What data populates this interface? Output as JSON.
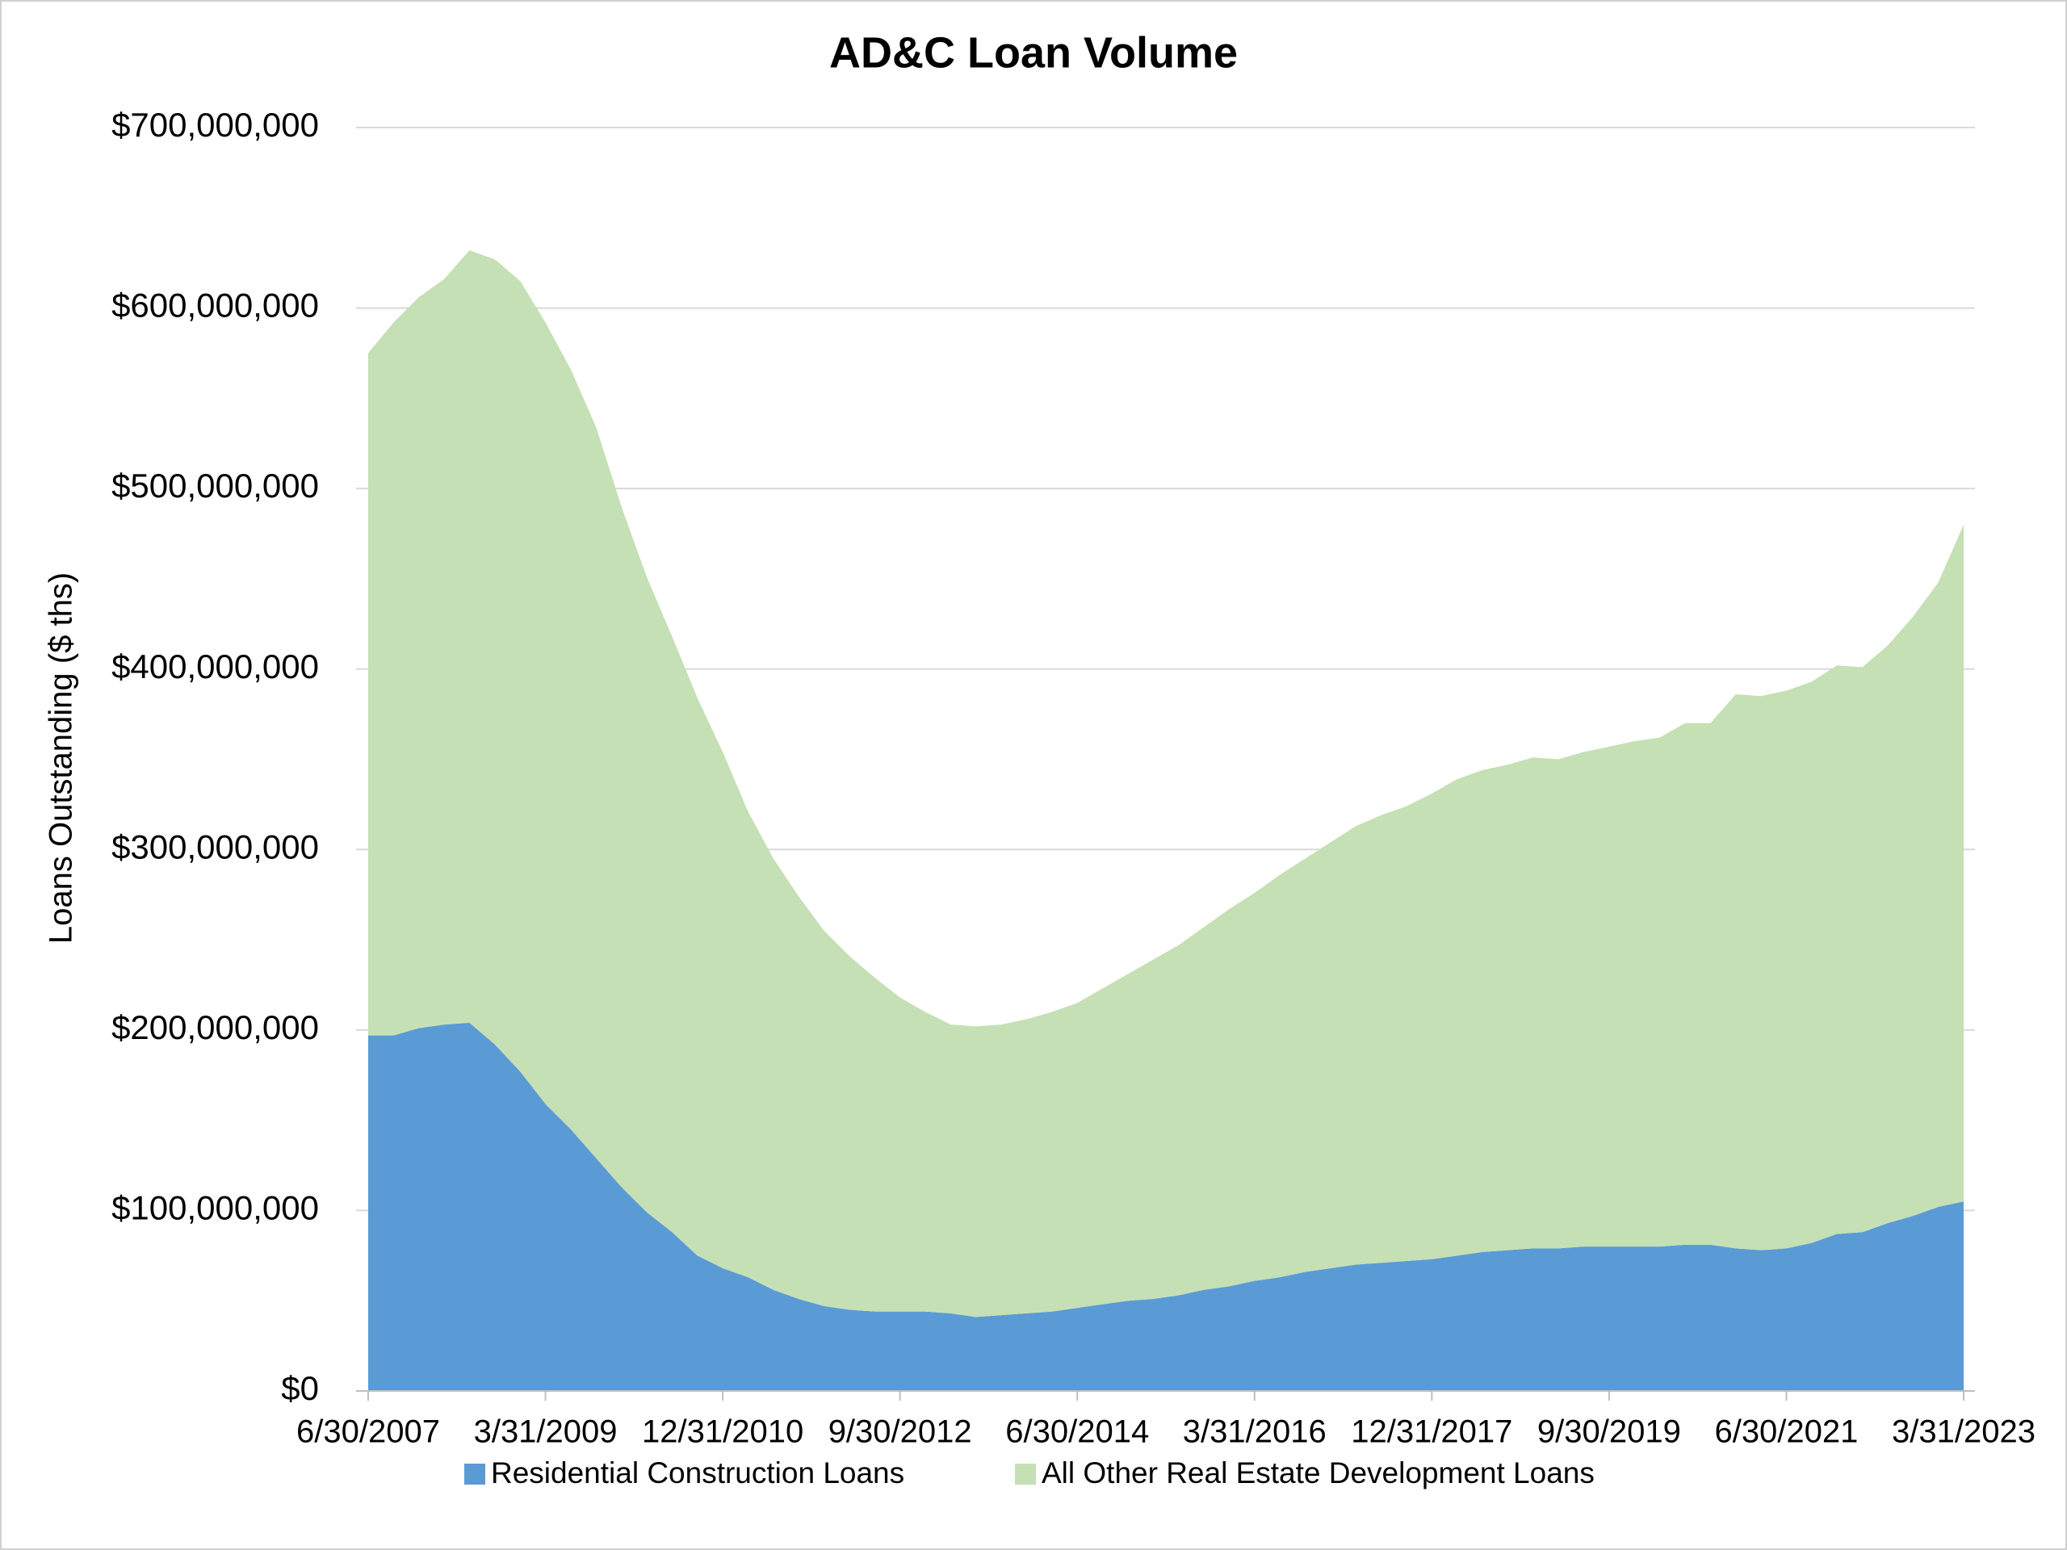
{
  "chart_data": {
    "type": "stacked_area",
    "title": "AD&C Loan Volume",
    "y_label": "Loans Outstanding ($ ths)",
    "categories": [
      "6/30/2007",
      null,
      null,
      null,
      null,
      null,
      null,
      "3/31/2009",
      null,
      null,
      null,
      null,
      null,
      null,
      "12/31/2010",
      null,
      null,
      null,
      null,
      null,
      null,
      "9/30/2012",
      null,
      null,
      null,
      null,
      null,
      null,
      "6/30/2014",
      null,
      null,
      null,
      null,
      null,
      null,
      "3/31/2016",
      null,
      null,
      null,
      null,
      null,
      null,
      "12/31/2017",
      null,
      null,
      null,
      null,
      null,
      null,
      "9/30/2019",
      null,
      null,
      null,
      null,
      null,
      null,
      "6/30/2021",
      null,
      null,
      null,
      null,
      null,
      null,
      "3/31/2023"
    ],
    "series": [
      {
        "name": "Residential Construction Loans",
        "color": "#5b9bd5",
        "values": [
          197000000,
          197000000,
          201000000,
          203000000,
          204000000,
          192000000,
          177000000,
          159000000,
          145000000,
          129000000,
          113000000,
          99000000,
          88000000,
          75000000,
          68000000,
          63000000,
          56000000,
          51000000,
          47000000,
          45000000,
          44000000,
          44000000,
          44000000,
          43000000,
          41000000,
          42000000,
          43000000,
          44000000,
          46000000,
          48000000,
          50000000,
          51000000,
          53000000,
          56000000,
          58000000,
          61000000,
          63000000,
          66000000,
          68000000,
          70000000,
          71000000,
          72000000,
          73000000,
          75000000,
          77000000,
          78000000,
          79000000,
          79000000,
          80000000,
          80000000,
          80000000,
          80000000,
          81000000,
          81000000,
          79000000,
          78000000,
          79000000,
          82000000,
          87000000,
          88000000,
          93000000,
          97000000,
          102000000,
          105000000
        ]
      },
      {
        "name": "All Other Real Estate Development Loans",
        "color": "#c5e0b4",
        "values": [
          378000000,
          395000000,
          405000000,
          413000000,
          428000000,
          435000000,
          438000000,
          433000000,
          421000000,
          405000000,
          377000000,
          352000000,
          330000000,
          309000000,
          286000000,
          258000000,
          239000000,
          223000000,
          208000000,
          196000000,
          185000000,
          174000000,
          166000000,
          160000000,
          161000000,
          161000000,
          163000000,
          166000000,
          169000000,
          175000000,
          181000000,
          188000000,
          194000000,
          201000000,
          209000000,
          215000000,
          223000000,
          229000000,
          236000000,
          243000000,
          248000000,
          252000000,
          258000000,
          264000000,
          267000000,
          269000000,
          272000000,
          271000000,
          274000000,
          277000000,
          280000000,
          282000000,
          289000000,
          289000000,
          307000000,
          307000000,
          309000000,
          311000000,
          315000000,
          313000000,
          320000000,
          332000000,
          346000000,
          375000000
        ]
      }
    ],
    "ylim": [
      0,
      700000000
    ],
    "yticks": [
      {
        "value": 0,
        "label": "$0"
      },
      {
        "value": 100000000,
        "label": "$100,000,000"
      },
      {
        "value": 200000000,
        "label": "$200,000,000"
      },
      {
        "value": 300000000,
        "label": "$300,000,000"
      },
      {
        "value": 400000000,
        "label": "$400,000,000"
      },
      {
        "value": 500000000,
        "label": "$500,000,000"
      },
      {
        "value": 600000000,
        "label": "$600,000,000"
      },
      {
        "value": 700000000,
        "label": "$700,000,000"
      }
    ],
    "grid": true,
    "legend": "bottom"
  }
}
